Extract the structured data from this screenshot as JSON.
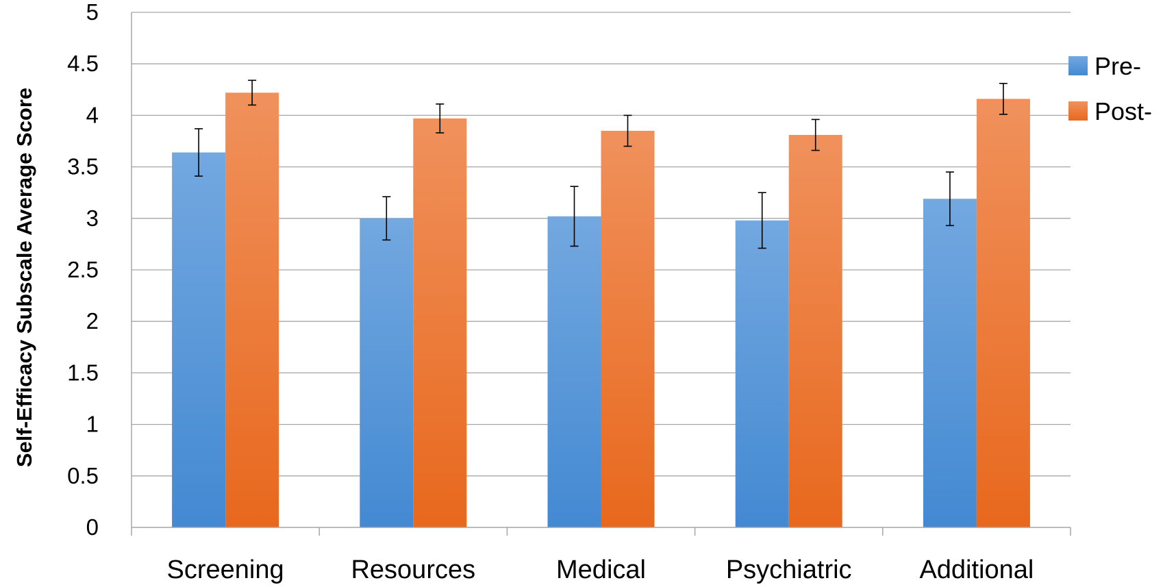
{
  "chart_data": {
    "type": "bar",
    "title": "",
    "xlabel": "",
    "ylabel": "Self-Efficacy Subscale Average Score",
    "categories": [
      "Screening",
      "Resources",
      "Medical",
      "Psychiatric",
      "Additional"
    ],
    "series": [
      {
        "name": "Pre-",
        "values": [
          3.64,
          3.0,
          3.02,
          2.98,
          3.19
        ],
        "error": [
          0.23,
          0.21,
          0.29,
          0.27,
          0.26
        ],
        "color_top": "#73a8e0",
        "color_bottom": "#4389d2"
      },
      {
        "name": "Post-",
        "values": [
          4.22,
          3.97,
          3.85,
          3.81,
          4.16
        ],
        "error": [
          0.12,
          0.14,
          0.15,
          0.15,
          0.15
        ],
        "color_top": "#f0915c",
        "color_bottom": "#e8681d"
      }
    ],
    "ylim": [
      0,
      5
    ],
    "yticks": [
      "0",
      "0.5",
      "1",
      "1.5",
      "2",
      "2.5",
      "3",
      "3.5",
      "4",
      "4.5",
      "5"
    ],
    "grid": true,
    "legend": "right",
    "gridline_color": "#a6a6a6"
  }
}
